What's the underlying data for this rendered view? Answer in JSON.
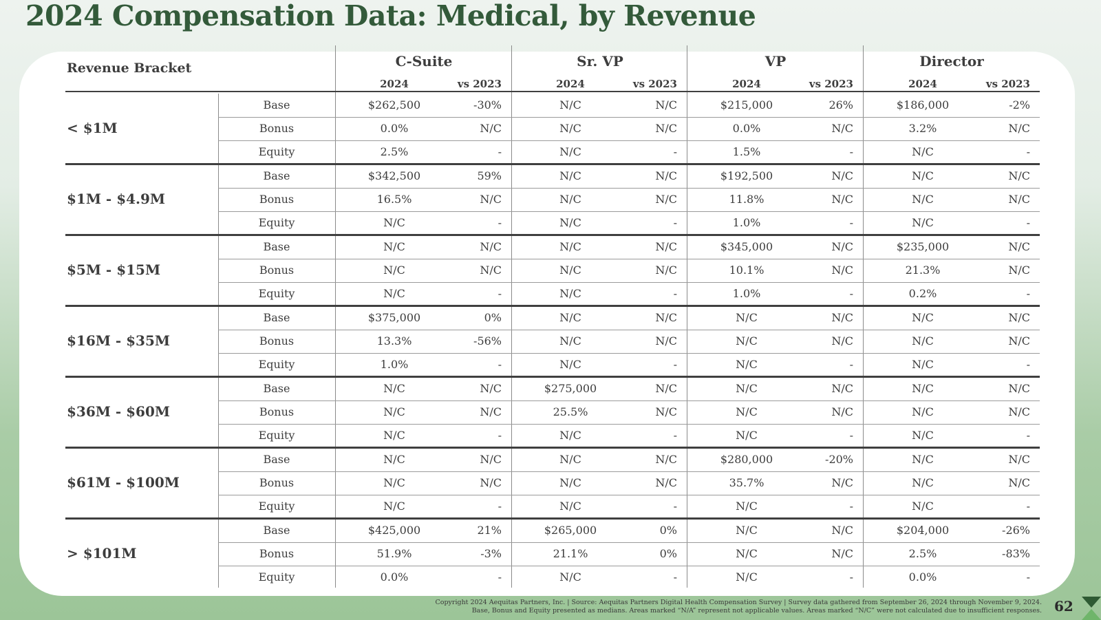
{
  "page": {
    "title": "2024 Compensation Data:  Medical, by Revenue",
    "page_number": "62",
    "footer_line1": "Copyright 2024 Aequitas Partners, Inc.  |  Source: Aequitas Partners Digital Health Compensation Survey  |  Survey data gathered from September 26, 2024 through November 9, 2024.",
    "footer_line2": "Base, Bonus and Equity presented as medians.  Areas marked “N/A” represent not applicable values. Areas marked “N/C” were not calculated due to insufficient responses."
  },
  "table": {
    "bracket_header": "Revenue Bracket",
    "groups": [
      "C-Suite",
      "Sr. VP",
      "VP",
      "Director"
    ],
    "subheaders": [
      "2024",
      "vs 2023"
    ],
    "brackets": [
      {
        "name": "< $1M",
        "rows": [
          {
            "metric": "Base",
            "values": [
              "$262,500",
              "-30%",
              "N/C",
              "N/C",
              "$215,000",
              "26%",
              "$186,000",
              "-2%"
            ]
          },
          {
            "metric": "Bonus",
            "values": [
              "0.0%",
              "N/C",
              "N/C",
              "N/C",
              "0.0%",
              "N/C",
              "3.2%",
              "N/C"
            ]
          },
          {
            "metric": "Equity",
            "values": [
              "2.5%",
              "-",
              "N/C",
              "-",
              "1.5%",
              "-",
              "N/C",
              "-"
            ]
          }
        ]
      },
      {
        "name": "$1M - $4.9M",
        "rows": [
          {
            "metric": "Base",
            "values": [
              "$342,500",
              "59%",
              "N/C",
              "N/C",
              "$192,500",
              "N/C",
              "N/C",
              "N/C"
            ]
          },
          {
            "metric": "Bonus",
            "values": [
              "16.5%",
              "N/C",
              "N/C",
              "N/C",
              "11.8%",
              "N/C",
              "N/C",
              "N/C"
            ]
          },
          {
            "metric": "Equity",
            "values": [
              "N/C",
              "-",
              "N/C",
              "-",
              "1.0%",
              "-",
              "N/C",
              "-"
            ]
          }
        ]
      },
      {
        "name": "$5M - $15M",
        "rows": [
          {
            "metric": "Base",
            "values": [
              "N/C",
              "N/C",
              "N/C",
              "N/C",
              "$345,000",
              "N/C",
              "$235,000",
              "N/C"
            ]
          },
          {
            "metric": "Bonus",
            "values": [
              "N/C",
              "N/C",
              "N/C",
              "N/C",
              "10.1%",
              "N/C",
              "21.3%",
              "N/C"
            ]
          },
          {
            "metric": "Equity",
            "values": [
              "N/C",
              "-",
              "N/C",
              "-",
              "1.0%",
              "-",
              "0.2%",
              "-"
            ]
          }
        ]
      },
      {
        "name": "$16M - $35M",
        "rows": [
          {
            "metric": "Base",
            "values": [
              "$375,000",
              "0%",
              "N/C",
              "N/C",
              "N/C",
              "N/C",
              "N/C",
              "N/C"
            ]
          },
          {
            "metric": "Bonus",
            "values": [
              "13.3%",
              "-56%",
              "N/C",
              "N/C",
              "N/C",
              "N/C",
              "N/C",
              "N/C"
            ]
          },
          {
            "metric": "Equity",
            "values": [
              "1.0%",
              "-",
              "N/C",
              "-",
              "N/C",
              "-",
              "N/C",
              "-"
            ]
          }
        ]
      },
      {
        "name": "$36M - $60M",
        "rows": [
          {
            "metric": "Base",
            "values": [
              "N/C",
              "N/C",
              "$275,000",
              "N/C",
              "N/C",
              "N/C",
              "N/C",
              "N/C"
            ]
          },
          {
            "metric": "Bonus",
            "values": [
              "N/C",
              "N/C",
              "25.5%",
              "N/C",
              "N/C",
              "N/C",
              "N/C",
              "N/C"
            ]
          },
          {
            "metric": "Equity",
            "values": [
              "N/C",
              "-",
              "N/C",
              "-",
              "N/C",
              "-",
              "N/C",
              "-"
            ]
          }
        ]
      },
      {
        "name": "$61M - $100M",
        "rows": [
          {
            "metric": "Base",
            "values": [
              "N/C",
              "N/C",
              "N/C",
              "N/C",
              "$280,000",
              "-20%",
              "N/C",
              "N/C"
            ]
          },
          {
            "metric": "Bonus",
            "values": [
              "N/C",
              "N/C",
              "N/C",
              "N/C",
              "35.7%",
              "N/C",
              "N/C",
              "N/C"
            ]
          },
          {
            "metric": "Equity",
            "values": [
              "N/C",
              "-",
              "N/C",
              "-",
              "N/C",
              "-",
              "N/C",
              "-"
            ]
          }
        ]
      },
      {
        "name": "> $101M",
        "rows": [
          {
            "metric": "Base",
            "values": [
              "$425,000",
              "21%",
              "$265,000",
              "0%",
              "N/C",
              "N/C",
              "$204,000",
              "-26%"
            ]
          },
          {
            "metric": "Bonus",
            "values": [
              "51.9%",
              "-3%",
              "21.1%",
              "0%",
              "N/C",
              "N/C",
              "2.5%",
              "-83%"
            ]
          },
          {
            "metric": "Equity",
            "values": [
              "0.0%",
              "-",
              "N/C",
              "-",
              "N/C",
              "-",
              "0.0%",
              "-"
            ]
          }
        ]
      }
    ]
  }
}
